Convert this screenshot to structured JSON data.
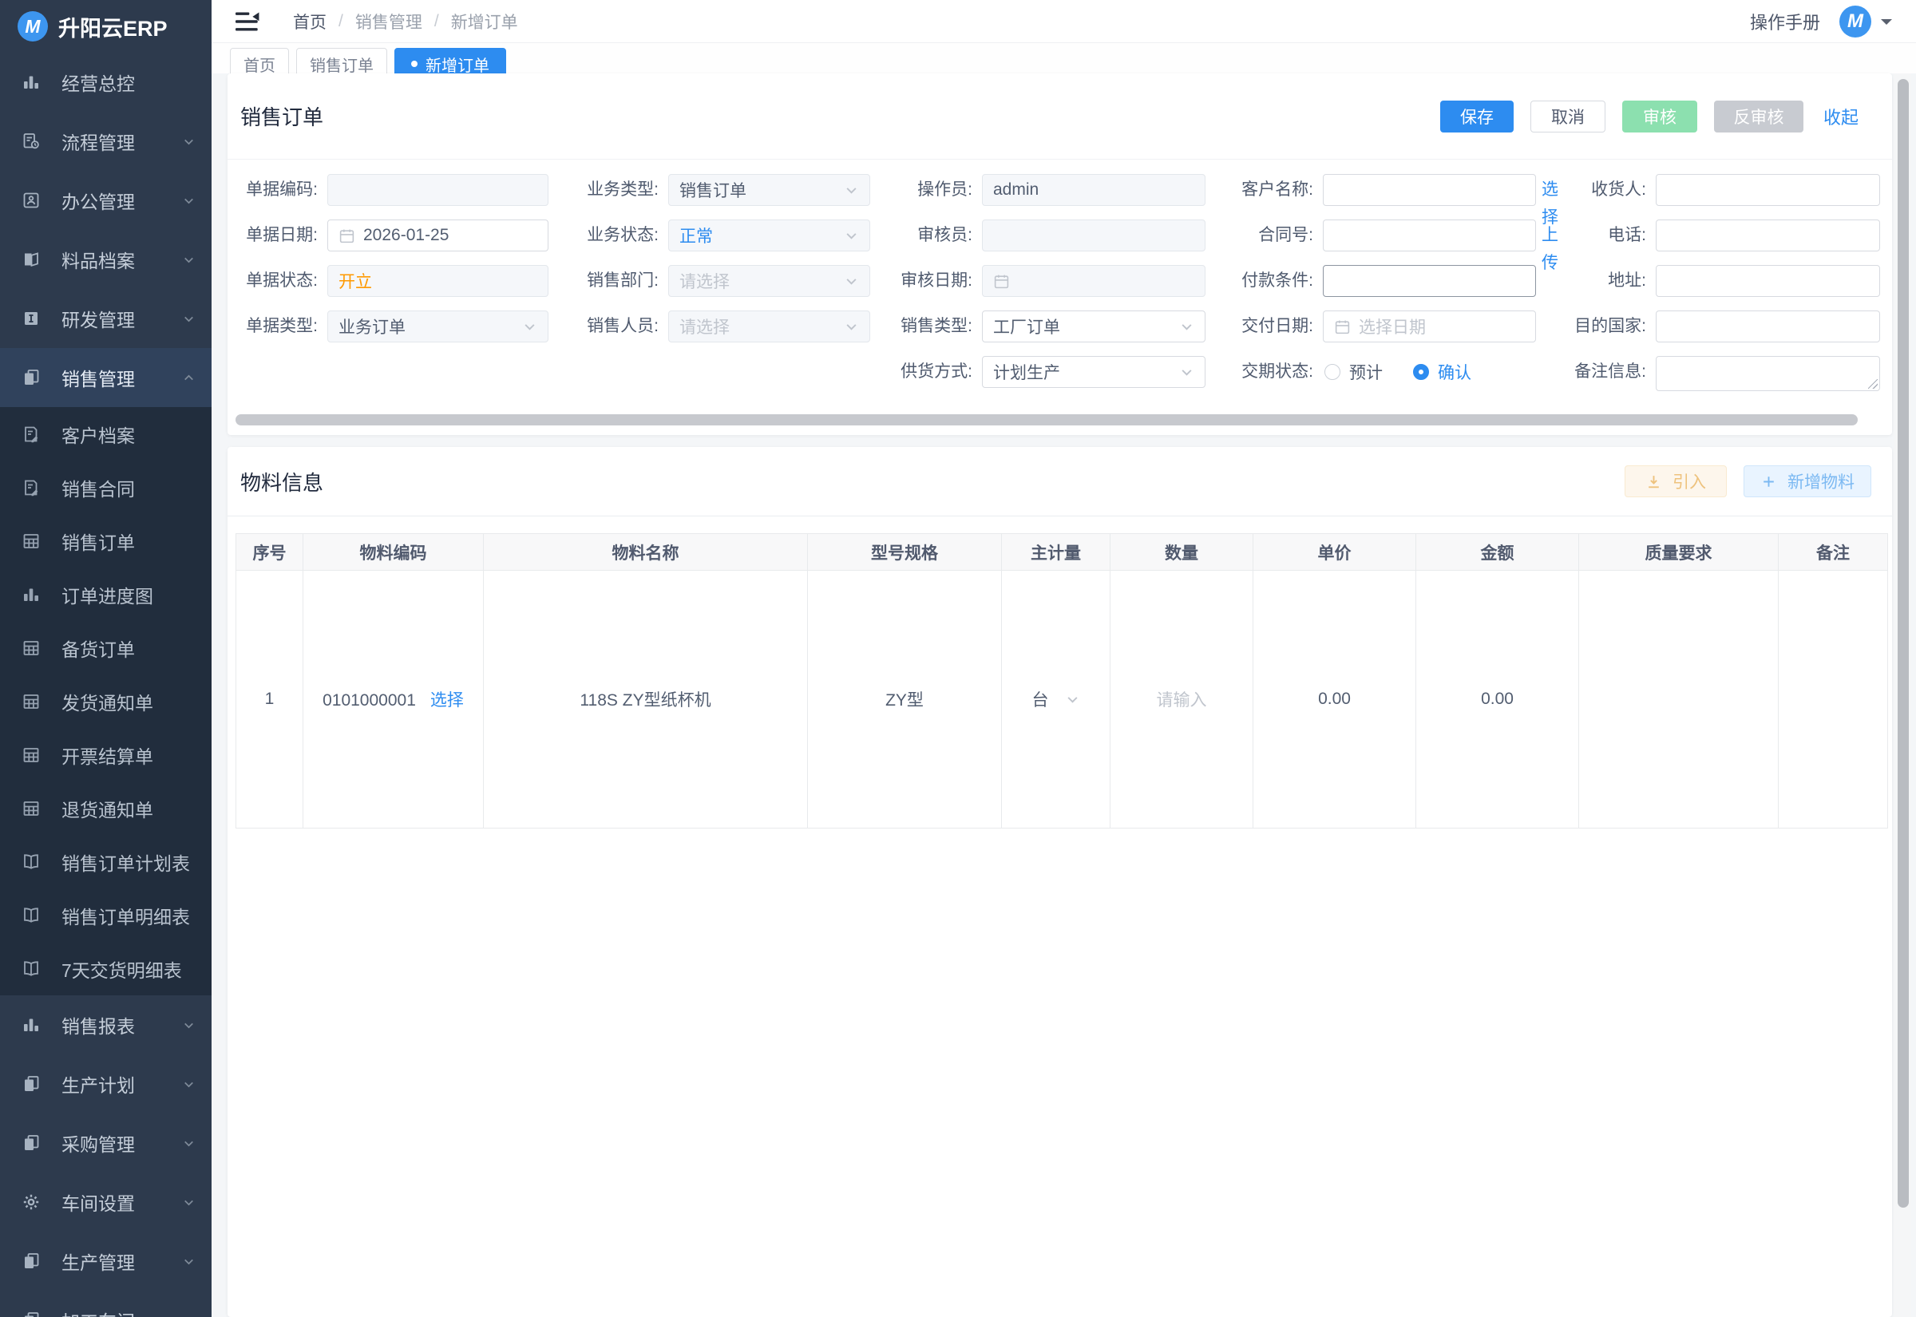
{
  "app": {
    "name": "升阳云ERP",
    "logo_letter": "M"
  },
  "sidebar": {
    "items": [
      {
        "label": "经营总控",
        "icon": "chart-icon",
        "level": 1
      },
      {
        "label": "流程管理",
        "icon": "flow-doc-icon",
        "level": 1,
        "chevron": "down"
      },
      {
        "label": "办公管理",
        "icon": "office-icon",
        "level": 1,
        "chevron": "down"
      },
      {
        "label": "料品档案",
        "icon": "materials-icon",
        "level": 1,
        "chevron": "down"
      },
      {
        "label": "研发管理",
        "icon": "rd-icon",
        "level": 1,
        "chevron": "down"
      },
      {
        "label": "销售管理",
        "icon": "sales-docs-icon",
        "level": 1,
        "chevron": "up",
        "active": true
      },
      {
        "label": "客户档案",
        "icon": "doc-edit-icon",
        "level": 2
      },
      {
        "label": "销售合同",
        "icon": "doc-edit-icon",
        "level": 2
      },
      {
        "label": "销售订单",
        "icon": "table-icon",
        "level": 2
      },
      {
        "label": "订单进度图",
        "icon": "chart-icon",
        "level": 2
      },
      {
        "label": "备货订单",
        "icon": "table-icon",
        "level": 2
      },
      {
        "label": "发货通知单",
        "icon": "table-icon",
        "level": 2
      },
      {
        "label": "开票结算单",
        "icon": "table-icon",
        "level": 2
      },
      {
        "label": "退货通知单",
        "icon": "table-icon",
        "level": 2
      },
      {
        "label": "销售订单计划表",
        "icon": "book-icon",
        "level": 2
      },
      {
        "label": "销售订单明细表",
        "icon": "book-icon",
        "level": 2
      },
      {
        "label": "7天交货明细表",
        "icon": "book-icon",
        "level": 2
      },
      {
        "label": "销售报表",
        "icon": "chart-icon",
        "level": 1,
        "chevron": "down"
      },
      {
        "label": "生产计划",
        "icon": "copy-docs-icon",
        "level": 1,
        "chevron": "down"
      },
      {
        "label": "采购管理",
        "icon": "copy-docs-icon",
        "level": 1,
        "chevron": "down"
      },
      {
        "label": "车间设置",
        "icon": "gear-icon",
        "level": 1,
        "chevron": "down"
      },
      {
        "label": "生产管理",
        "icon": "copy-docs-icon",
        "level": 1,
        "chevron": "down"
      },
      {
        "label": "加工车间",
        "icon": "copy-docs-icon",
        "level": 1,
        "chevron": "down"
      }
    ]
  },
  "topbar": {
    "breadcrumb": [
      "首页",
      "销售管理",
      "新增订单"
    ],
    "separator": "/",
    "manual_label": "操作手册"
  },
  "tabs": [
    {
      "label": "首页"
    },
    {
      "label": "销售订单"
    },
    {
      "label": "新增订单",
      "active": true
    }
  ],
  "order": {
    "title": "销售订单",
    "buttons": {
      "save": "保存",
      "cancel": "取消",
      "audit": "审核",
      "unaudit": "反审核",
      "collapse": "收起"
    },
    "fields": {
      "doc_code": {
        "label": "单据编码:",
        "value": ""
      },
      "doc_date": {
        "label": "单据日期:",
        "value": "2026-01-25"
      },
      "doc_status": {
        "label": "单据状态:",
        "value": "开立"
      },
      "doc_type": {
        "label": "单据类型:",
        "value": "业务订单"
      },
      "biz_type": {
        "label": "业务类型:",
        "value": "销售订单"
      },
      "biz_status": {
        "label": "业务状态:",
        "value": "正常"
      },
      "sales_dept": {
        "label": "销售部门:",
        "placeholder": "请选择"
      },
      "sales_person": {
        "label": "销售人员:",
        "placeholder": "请选择"
      },
      "operator": {
        "label": "操作员:",
        "value": "admin"
      },
      "auditor": {
        "label": "审核员:",
        "value": ""
      },
      "audit_date": {
        "label": "审核日期:",
        "value": ""
      },
      "sales_type": {
        "label": "销售类型:",
        "value": "工厂订单"
      },
      "supply_mode": {
        "label": "供货方式:",
        "value": "计划生产"
      },
      "customer": {
        "label": "客户名称:",
        "value": "",
        "select_link": "选择"
      },
      "contract_no": {
        "label": "合同号:",
        "value": "",
        "upload_link": "上传"
      },
      "payment_terms": {
        "label": "付款条件:",
        "value": ""
      },
      "delivery_date": {
        "label": "交付日期:",
        "placeholder": "选择日期"
      },
      "delivery_status": {
        "label": "交期状态:",
        "option_estimate": "预计",
        "option_confirm": "确认",
        "selected": "确认"
      },
      "receiver": {
        "label": "收货人:",
        "value": ""
      },
      "phone": {
        "label": "电话:",
        "value": ""
      },
      "address": {
        "label": "地址:",
        "value": ""
      },
      "dest_country": {
        "label": "目的国家:",
        "value": ""
      },
      "remark": {
        "label": "备注信息:",
        "value": ""
      }
    }
  },
  "material": {
    "title": "物料信息",
    "import_label": "引入",
    "add_label": "新增物料",
    "table": {
      "headers": [
        "序号",
        "物料编码",
        "物料名称",
        "型号规格",
        "主计量",
        "数量",
        "单价",
        "金额",
        "质量要求",
        "备注"
      ],
      "rows": [
        {
          "seq": "1",
          "code": "0101000001",
          "code_link": "选择",
          "name": "118S ZY型纸杯机",
          "spec": "ZY型",
          "unit": "台",
          "qty_placeholder": "请输入",
          "price": "0.00",
          "amount": "0.00",
          "quality": "",
          "remark": ""
        }
      ]
    }
  },
  "colors": {
    "accent": "#2d8cf0",
    "open_status": "#ff9900",
    "sidebar_bg": "#2d3a4d",
    "submenu_bg": "#212d3d"
  }
}
